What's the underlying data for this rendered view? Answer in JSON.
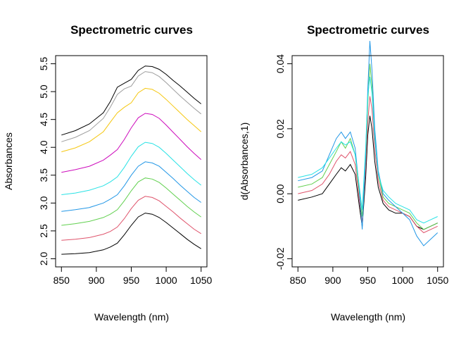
{
  "colors": [
    "#000000",
    "#df536b",
    "#61d04f",
    "#2297e6",
    "#28e2e5",
    "#cd0bbc",
    "#f5c710",
    "#9e9e9e"
  ],
  "chart_data": [
    {
      "type": "line",
      "title": "Spectrometric curves",
      "xlabel": "Wavelength (nm)",
      "ylabel": "Absorbances",
      "xlim": [
        850,
        1050
      ],
      "ylim": [
        2.0,
        5.5
      ],
      "xticks": [
        850,
        900,
        950,
        1000,
        1050
      ],
      "xtick_labels": [
        "850",
        "900",
        "950",
        "1000",
        "1050"
      ],
      "yticks": [
        2.0,
        2.5,
        3.0,
        3.5,
        4.0,
        4.5,
        5.0,
        5.5
      ],
      "ytick_labels": [
        "2.0",
        "2.5",
        "3.0",
        "3.5",
        "4.0",
        "4.5",
        "5.0",
        "5.5"
      ],
      "grid": false,
      "legend": "none",
      "x": [
        850,
        870,
        890,
        910,
        920,
        930,
        940,
        950,
        960,
        970,
        980,
        990,
        1000,
        1010,
        1020,
        1030,
        1040,
        1050
      ],
      "series": [
        {
          "values": [
            2.08,
            2.09,
            2.11,
            2.16,
            2.21,
            2.28,
            2.43,
            2.6,
            2.75,
            2.82,
            2.8,
            2.74,
            2.65,
            2.55,
            2.45,
            2.35,
            2.26,
            2.18
          ]
        },
        {
          "values": [
            2.33,
            2.35,
            2.38,
            2.44,
            2.49,
            2.57,
            2.72,
            2.9,
            3.05,
            3.12,
            3.1,
            3.04,
            2.94,
            2.84,
            2.73,
            2.63,
            2.53,
            2.45
          ]
        },
        {
          "values": [
            2.6,
            2.63,
            2.67,
            2.74,
            2.8,
            2.88,
            3.04,
            3.22,
            3.38,
            3.45,
            3.43,
            3.37,
            3.27,
            3.16,
            3.05,
            2.94,
            2.84,
            2.75
          ]
        },
        {
          "values": [
            2.85,
            2.88,
            2.92,
            3.0,
            3.07,
            3.15,
            3.31,
            3.5,
            3.66,
            3.74,
            3.72,
            3.66,
            3.55,
            3.44,
            3.32,
            3.21,
            3.1,
            3.01
          ]
        },
        {
          "values": [
            3.15,
            3.18,
            3.23,
            3.31,
            3.38,
            3.47,
            3.64,
            3.84,
            4.01,
            4.09,
            4.07,
            4.0,
            3.89,
            3.77,
            3.65,
            3.53,
            3.42,
            3.32
          ]
        },
        {
          "values": [
            3.55,
            3.6,
            3.66,
            3.77,
            3.86,
            3.96,
            4.14,
            4.35,
            4.53,
            4.61,
            4.59,
            4.52,
            4.4,
            4.27,
            4.14,
            4.01,
            3.89,
            3.78
          ]
        },
        {
          "values": [
            3.92,
            3.99,
            4.1,
            4.28,
            4.45,
            4.62,
            4.72,
            4.8,
            4.98,
            5.06,
            5.04,
            4.97,
            4.86,
            4.74,
            4.62,
            4.5,
            4.39,
            4.28
          ]
        },
        {
          "values": [
            4.1,
            4.18,
            4.3,
            4.52,
            4.72,
            4.95,
            5.05,
            5.1,
            5.28,
            5.36,
            5.34,
            5.27,
            5.16,
            5.04,
            4.92,
            4.81,
            4.7,
            4.6
          ]
        },
        {
          "values": [
            4.22,
            4.3,
            4.42,
            4.62,
            4.82,
            5.08,
            5.15,
            5.22,
            5.38,
            5.46,
            5.45,
            5.4,
            5.31,
            5.2,
            5.1,
            4.99,
            4.88,
            4.78
          ]
        }
      ]
    },
    {
      "type": "line",
      "title": "Spectrometric curves",
      "xlabel": "Wavelength (nm)",
      "ylabel": "d(Absorbances,1)",
      "xlim": [
        850,
        1050
      ],
      "ylim": [
        -0.02,
        0.04
      ],
      "xticks": [
        850,
        900,
        950,
        1000,
        1050
      ],
      "xtick_labels": [
        "850",
        "900",
        "950",
        "1000",
        "1050"
      ],
      "yticks": [
        -0.02,
        0.0,
        0.02,
        0.04
      ],
      "ytick_labels": [
        "-0.02",
        "0.00",
        "0.02",
        "0.04"
      ],
      "grid": false,
      "legend": "none",
      "x": [
        850,
        870,
        885,
        895,
        905,
        912,
        918,
        925,
        932,
        938,
        942,
        947,
        950,
        953,
        956,
        960,
        965,
        972,
        980,
        990,
        1000,
        1010,
        1020,
        1030,
        1040,
        1050
      ],
      "series": [
        {
          "values": [
            -0.002,
            -0.001,
            0.0,
            0.003,
            0.006,
            0.008,
            0.007,
            0.009,
            0.006,
            -0.004,
            -0.01,
            0.005,
            0.018,
            0.024,
            0.02,
            0.01,
            0.002,
            -0.003,
            -0.005,
            -0.006,
            -0.006,
            -0.007,
            -0.01,
            -0.011,
            -0.01,
            -0.009
          ]
        },
        {
          "values": [
            0.0,
            0.001,
            0.003,
            0.006,
            0.01,
            0.012,
            0.011,
            0.013,
            0.009,
            -0.002,
            -0.009,
            0.008,
            0.022,
            0.03,
            0.026,
            0.014,
            0.004,
            -0.002,
            -0.004,
            -0.005,
            -0.006,
            -0.007,
            -0.01,
            -0.012,
            -0.011,
            -0.01
          ]
        },
        {
          "values": [
            0.002,
            0.003,
            0.005,
            0.009,
            0.013,
            0.016,
            0.014,
            0.017,
            0.012,
            0.0,
            -0.007,
            0.011,
            0.028,
            0.04,
            0.033,
            0.018,
            0.006,
            -0.001,
            -0.003,
            -0.004,
            -0.005,
            -0.006,
            -0.009,
            -0.011,
            -0.01,
            -0.009
          ]
        },
        {
          "values": [
            0.004,
            0.005,
            0.007,
            0.012,
            0.017,
            0.019,
            0.017,
            0.019,
            0.014,
            0.001,
            -0.011,
            0.012,
            0.032,
            0.047,
            0.038,
            0.02,
            0.007,
            0.0,
            -0.002,
            -0.004,
            -0.006,
            -0.008,
            -0.013,
            -0.016,
            -0.014,
            -0.012
          ]
        },
        {
          "values": [
            0.005,
            0.006,
            0.008,
            0.011,
            0.014,
            0.016,
            0.015,
            0.016,
            0.012,
            0.002,
            -0.005,
            0.014,
            0.03,
            0.036,
            0.031,
            0.017,
            0.006,
            0.001,
            -0.001,
            -0.003,
            -0.004,
            -0.005,
            -0.008,
            -0.009,
            -0.008,
            -0.007
          ]
        }
      ]
    }
  ]
}
